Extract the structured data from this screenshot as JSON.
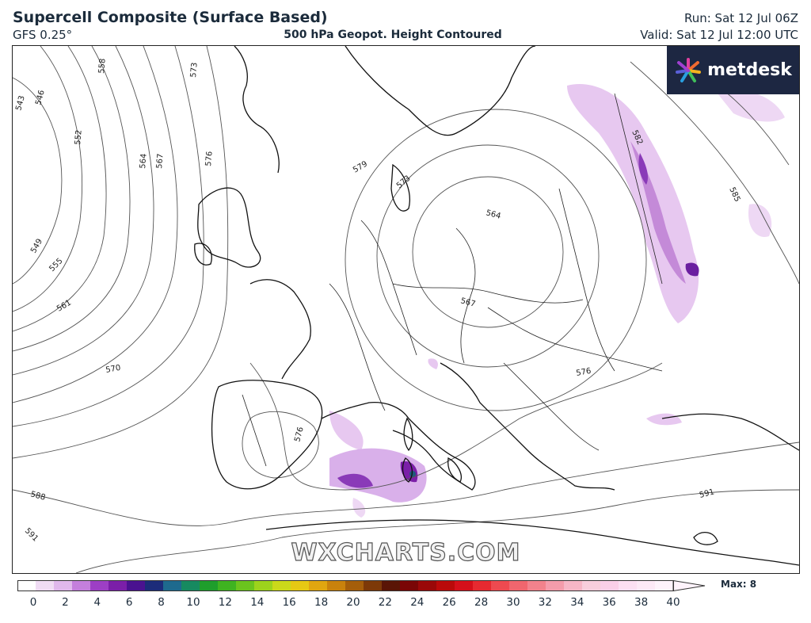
{
  "header": {
    "title": "Supercell Composite (Surface Based)",
    "model": "GFS 0.25°",
    "subtitle": "500 hPa Geopot. Height Contoured",
    "run": "Run: Sat 12 Jul 06Z",
    "valid": "Valid: Sat 12 Jul 12:00 UTC"
  },
  "logo": {
    "text": "metdesk",
    "icon": "metdesk-burst-icon"
  },
  "watermark": "WXCHARTS.COM",
  "contour_labels": [
    "543",
    "546",
    "549",
    "552",
    "555",
    "558",
    "561",
    "564",
    "567",
    "570",
    "573",
    "576",
    "579",
    "564",
    "567",
    "573",
    "576",
    "576",
    "582",
    "585",
    "588",
    "591",
    "591"
  ],
  "colorbar": {
    "ticks": [
      "0",
      "2",
      "4",
      "6",
      "8",
      "10",
      "12",
      "14",
      "16",
      "18",
      "20",
      "22",
      "24",
      "26",
      "28",
      "30",
      "32",
      "34",
      "36",
      "38",
      "40"
    ],
    "colors": [
      "#ffffff",
      "#f0dcf4",
      "#e0b8ec",
      "#c47fdc",
      "#9d3fc5",
      "#7b1fa8",
      "#4a1290",
      "#1c2c7a",
      "#1e6a8e",
      "#178a60",
      "#1f9e2c",
      "#3fb321",
      "#6bc41e",
      "#9dd31c",
      "#cbd91a",
      "#e6c914",
      "#e0a610",
      "#c9820c",
      "#a55e0a",
      "#7d3908",
      "#5a1506",
      "#7a0606",
      "#9a0808",
      "#ba0a0a",
      "#d5101a",
      "#e62a30",
      "#ee4a50",
      "#f0666e",
      "#f2828c",
      "#f49cab",
      "#f6b6c6",
      "#f8cedc",
      "#facfe8",
      "#fcdff2",
      "#fde9f6",
      "#fef3fb"
    ],
    "max_label": "Max: 8"
  }
}
